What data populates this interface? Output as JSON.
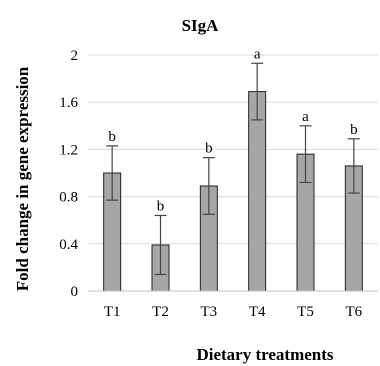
{
  "chart_data": {
    "type": "bar",
    "title": "SIgA",
    "xlabel": "Dietary treatments",
    "ylabel": "Fold change in gene expression",
    "categories": [
      "T1",
      "T2",
      "T3",
      "T4",
      "T5",
      "T6"
    ],
    "values": [
      1.0,
      0.39,
      0.89,
      1.69,
      1.16,
      1.06
    ],
    "error": [
      0.23,
      0.25,
      0.24,
      0.24,
      0.24,
      0.23
    ],
    "significance": [
      "b",
      "b",
      "b",
      "a",
      "a",
      "b"
    ],
    "ylim": [
      0,
      2
    ],
    "yticks": [
      "0",
      "0.4",
      "0.8",
      "1.2",
      "1.6",
      "2"
    ],
    "grid": true,
    "colors": {
      "bar": "#a6a6a6",
      "bar_edge": "#222222",
      "grid": "#d9d9d9",
      "error": "#444444"
    }
  }
}
